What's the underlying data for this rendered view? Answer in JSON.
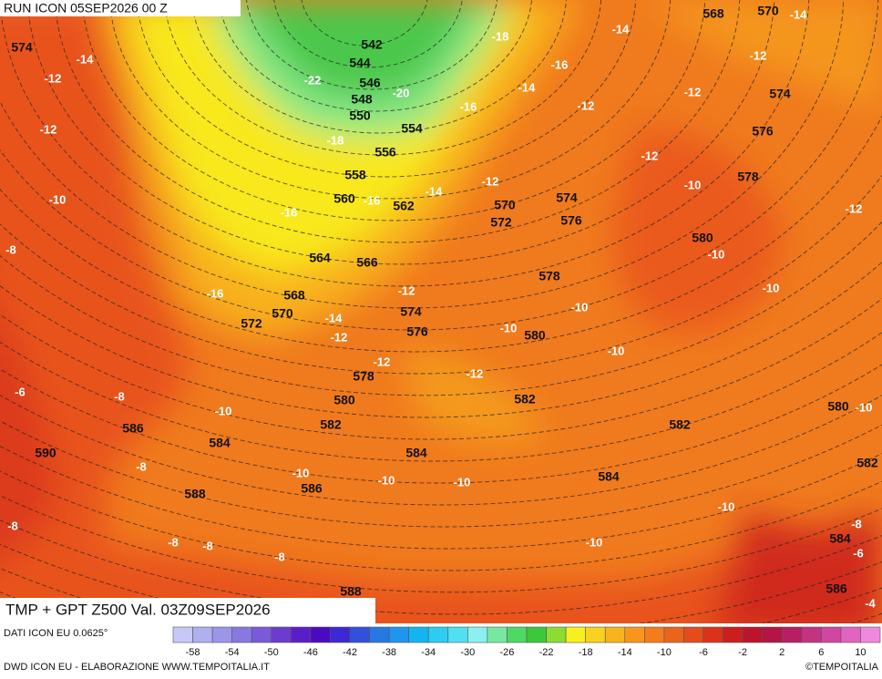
{
  "header": {
    "run": "RUN ICON 05SEP2026 00 Z",
    "title": "TMP + GPT Z500 Val. 03Z09SEP2026"
  },
  "map": {
    "height_labels": [
      574,
      568,
      570,
      542,
      544,
      546,
      548,
      550,
      554,
      556,
      558,
      560,
      562,
      570,
      572,
      574,
      576,
      574,
      576,
      578,
      580,
      564,
      566,
      568,
      570,
      572,
      574,
      576,
      578,
      580,
      578,
      580,
      582,
      582,
      582,
      580,
      586,
      584,
      584,
      584,
      590,
      588,
      586,
      588,
      582,
      584,
      586
    ],
    "temperature_labels": [
      -14,
      -12,
      -12,
      -10,
      -8,
      -22,
      -20,
      -18,
      -16,
      -16,
      -16,
      -14,
      -12,
      -12,
      -14,
      -12,
      -18,
      -16,
      -14,
      -16,
      -14,
      -14,
      -12,
      -12,
      -12,
      -12,
      -10,
      -12,
      -10,
      -10,
      -10,
      -10,
      -10,
      -12,
      -12,
      -10,
      -6,
      -8,
      -8,
      -10,
      -10,
      -10,
      -10,
      -10,
      -8,
      -8,
      -8,
      -8,
      -10,
      -8,
      -6,
      -4
    ]
  },
  "footer": {
    "source": "DATI ICON EU 0.0625°",
    "credit": "DWD ICON EU - ELABORAZIONE WWW.TEMPOITALIA.IT",
    "brand": "©TEMPOITALIA"
  },
  "legend": {
    "colors": [
      "#c8c8f8",
      "#b0b0f0",
      "#9c96ea",
      "#8a78e2",
      "#7a5ad8",
      "#6a3cd0",
      "#5a1ec8",
      "#4b0ac0",
      "#3c28d4",
      "#3250dc",
      "#2878e4",
      "#1e96ec",
      "#14b4f0",
      "#2ccdf0",
      "#50e0f0",
      "#8cf0f0",
      "#78e8a0",
      "#50d864",
      "#3cc83c",
      "#8cdc32",
      "#f8f01e",
      "#f8d21e",
      "#f8b41c",
      "#f8961c",
      "#f47c1c",
      "#ec641c",
      "#e44c1c",
      "#dc321c",
      "#cc1e1e",
      "#bc142c",
      "#b41446",
      "#b81e64",
      "#c43282",
      "#d046a0",
      "#e064c0",
      "#f088dc"
    ],
    "ticks": [
      -58,
      -54,
      -50,
      -46,
      -42,
      -38,
      -34,
      -30,
      -26,
      -22,
      -18,
      -14,
      -10,
      -6,
      -2,
      2,
      6,
      10
    ]
  }
}
